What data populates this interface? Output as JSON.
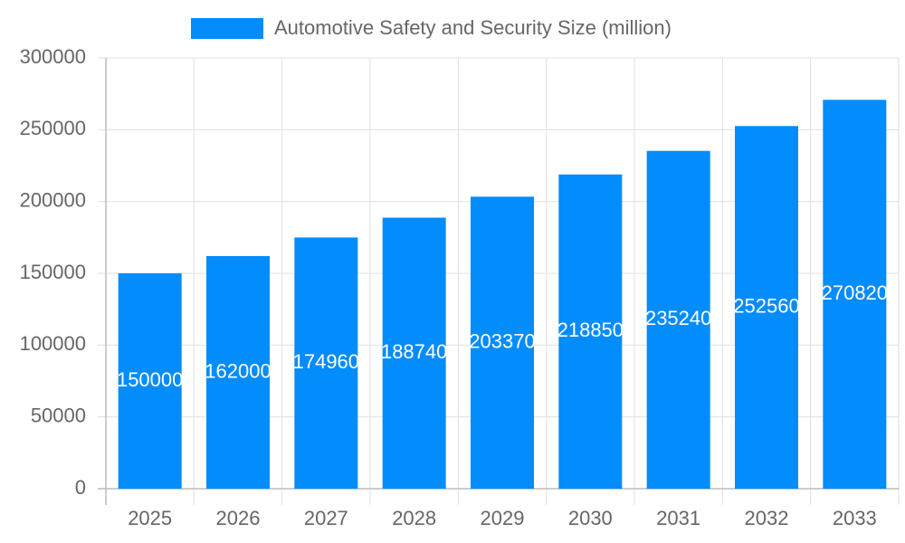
{
  "chart_data": {
    "type": "bar",
    "categories": [
      "2025",
      "2026",
      "2027",
      "2028",
      "2029",
      "2030",
      "2031",
      "2032",
      "2033"
    ],
    "series": [
      {
        "name": "Automotive Safety and Security Size (million)",
        "color": "#038cfc",
        "values": [
          150000,
          162000,
          174960,
          188740,
          203370,
          218850,
          235240,
          252560,
          270820
        ]
      }
    ],
    "ylim": [
      0,
      300000
    ],
    "yticks": [
      0,
      50000,
      100000,
      150000,
      200000,
      250000,
      300000
    ],
    "grid": true,
    "legend": "top"
  }
}
